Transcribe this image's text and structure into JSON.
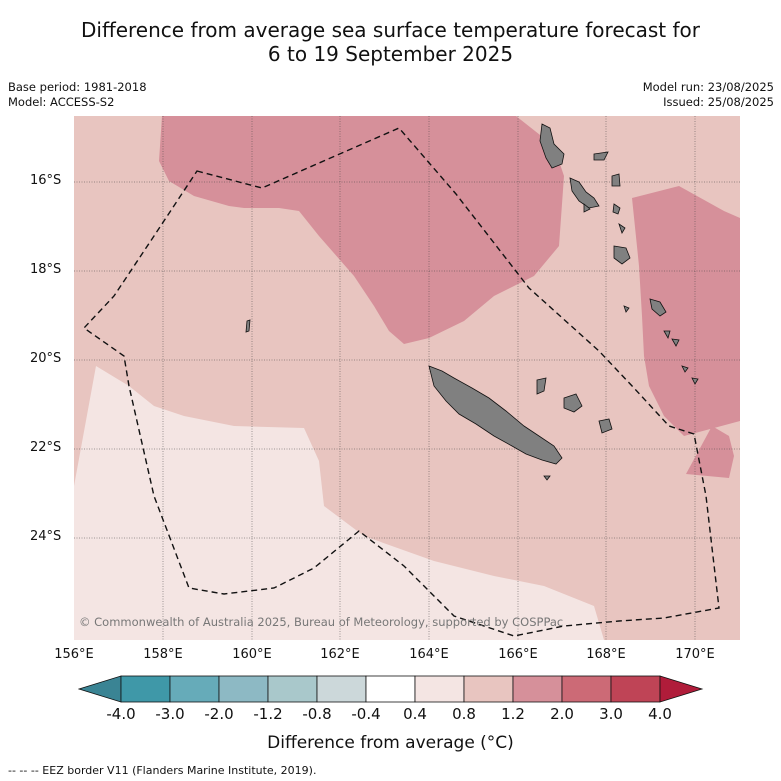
{
  "title_line1": "Difference from average sea surface temperature forecast for",
  "title_line2": "6 to 19 September 2025",
  "base_period": "Base period: 1981-2018",
  "model": "Model: ACCESS-S2",
  "model_run": "Model run: 23/08/2025",
  "issued": "Issued: 25/08/2025",
  "lat_labels": [
    "16°S",
    "18°S",
    "20°S",
    "22°S",
    "24°S"
  ],
  "lon_labels": [
    "156°E",
    "158°E",
    "160°E",
    "162°E",
    "164°E",
    "166°E",
    "168°E",
    "170°E"
  ],
  "colorbar": {
    "ticks": [
      "-4.0",
      "-3.0",
      "-2.0",
      "-1.2",
      "-0.8",
      "-0.4",
      "0.4",
      "0.8",
      "1.2",
      "2.0",
      "3.0",
      "4.0"
    ],
    "colors": [
      "#3f98a8",
      "#66abb9",
      "#8db9c4",
      "#a9c8cb",
      "#ccd8da",
      "#ffffff",
      "#f4e5e3",
      "#e8c5c0",
      "#d6909a",
      "#cc6a76",
      "#bf4456"
    ],
    "under_color": "#3a8494",
    "over_color": "#b01c3a",
    "title": "Difference from average (°C)"
  },
  "copyright": "© Commonwealth of Australia 2025, Bureau of Meteorology, supported by COSPPac",
  "footnote": "--  --  -- EEZ border V11 (Flanders Marine Institute, 2019).",
  "legend_colors": {
    "land": "#808080",
    "anomaly_0_4_to_0_8": "#f4e5e3",
    "anomaly_0_8_to_1_2": "#e8c5c0",
    "anomaly_1_2_to_2_0": "#d6909a"
  }
}
